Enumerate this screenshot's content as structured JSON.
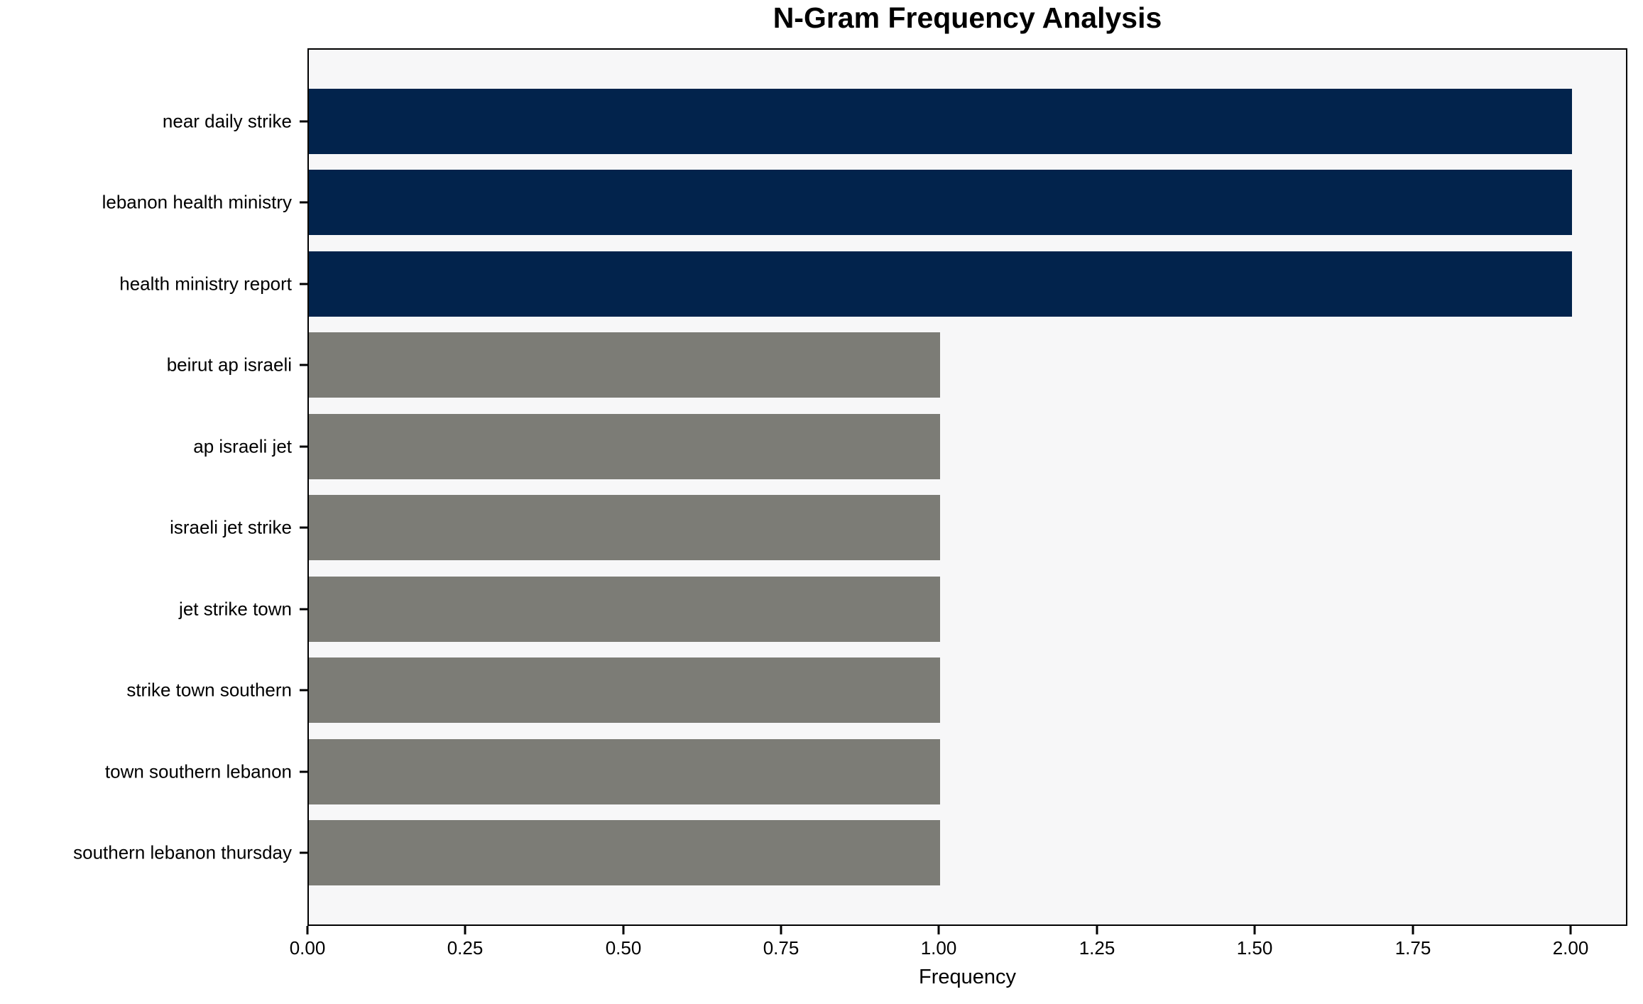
{
  "chart_data": {
    "type": "bar",
    "orientation": "horizontal",
    "title": "N-Gram Frequency Analysis",
    "xlabel": "Frequency",
    "ylabel": "",
    "categories": [
      "near daily strike",
      "lebanon health ministry",
      "health ministry report",
      "beirut ap israeli",
      "ap israeli jet",
      "israeli jet strike",
      "jet strike town",
      "strike town southern",
      "town southern lebanon",
      "southern lebanon thursday"
    ],
    "values": [
      2,
      2,
      2,
      1,
      1,
      1,
      1,
      1,
      1,
      1
    ],
    "bar_colors": [
      "#02234c",
      "#02234c",
      "#02234c",
      "#7c7c76",
      "#7c7c76",
      "#7c7c76",
      "#7c7c76",
      "#7c7c76",
      "#7c7c76",
      "#7c7c76"
    ],
    "xlim": [
      0,
      2.09
    ],
    "x_tick_values": [
      0,
      0.25,
      0.5,
      0.75,
      1.0,
      1.25,
      1.5,
      1.75,
      2.0
    ],
    "x_tick_labels": [
      "0.00",
      "0.25",
      "0.50",
      "0.75",
      "1.00",
      "1.25",
      "1.50",
      "1.75",
      "2.00"
    ],
    "grid": false,
    "legend": null,
    "colors": {
      "highlight_bar": "#02234c",
      "default_bar": "#7c7c76",
      "plot_background": "#f7f7f8",
      "figure_background": "#ffffff",
      "spine": "#000000",
      "text": "#000000"
    }
  }
}
